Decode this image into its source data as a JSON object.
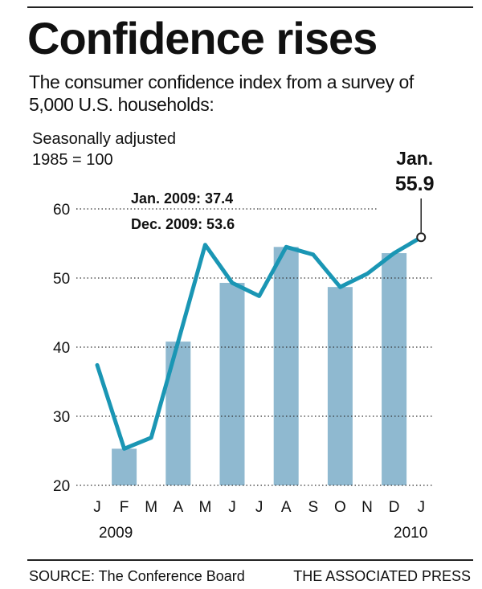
{
  "title": "Confidence rises",
  "subtitle": "The consumer confidence index from a survey of 5,000 U.S. households:",
  "unit_line1": "Seasonally adjusted",
  "unit_line2": "1985 = 100",
  "source": "SOURCE: The Conference Board",
  "credit": "THE ASSOCIATED PRESS",
  "colors": {
    "line": "#1a96b4",
    "bar": "#8fb9d0",
    "grid": "#333333",
    "text": "#111111"
  },
  "chart_data": {
    "type": "line",
    "x": [
      "J",
      "F",
      "M",
      "A",
      "M",
      "J",
      "J",
      "A",
      "S",
      "O",
      "N",
      "D",
      "J"
    ],
    "year_labels": [
      {
        "index": 0,
        "text": "2009"
      },
      {
        "index": 12,
        "text": "2010"
      }
    ],
    "series": [
      {
        "values": [
          37.4,
          25.3,
          26.9,
          40.8,
          54.8,
          49.3,
          47.4,
          54.5,
          53.4,
          48.7,
          50.6,
          53.6,
          55.9
        ]
      }
    ],
    "shaded_months": [
      1,
      3,
      5,
      7,
      9,
      11
    ],
    "yticks": [
      20,
      30,
      40,
      50,
      60
    ],
    "ylim": [
      20,
      60
    ],
    "grid": "dotted horizontal",
    "annotations": [
      {
        "text": "Jan. 2009: 37.4"
      },
      {
        "text": "Dec. 2009: 53.6"
      },
      {
        "line1": "Jan.",
        "line2": "55.9",
        "index": 12
      }
    ]
  }
}
